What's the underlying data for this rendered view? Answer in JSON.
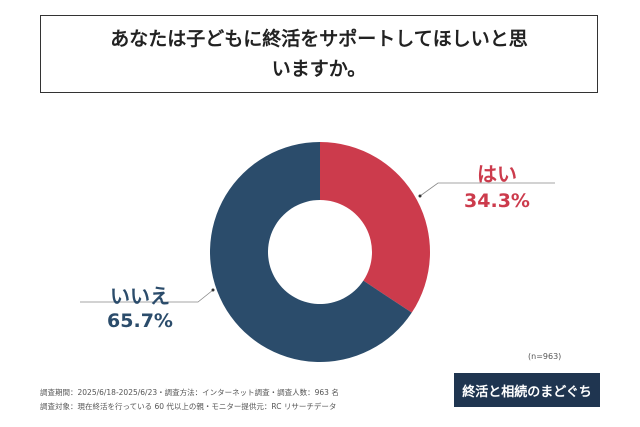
{
  "chart_data": {
    "type": "pie",
    "title": "あなたは子どもに終活をサポートしてほしいと思いますか。",
    "categories": [
      "はい",
      "いいえ"
    ],
    "values": [
      34.3,
      65.7
    ],
    "value_labels": [
      "34.3%",
      "65.7%"
    ],
    "colors": [
      "#cc3b4c",
      "#2b4c6b"
    ],
    "donut": true
  },
  "sample": "(n=963)",
  "notes": [
    "調査期間：2025/6/18-2025/6/23・調査方法：インターネット調査・調査人数：963 名",
    "調査対象：現在終活を行っている 60 代以上の親・モニター提供元：RC リサーチデータ"
  ],
  "logo": "終活と相続のまどぐち"
}
